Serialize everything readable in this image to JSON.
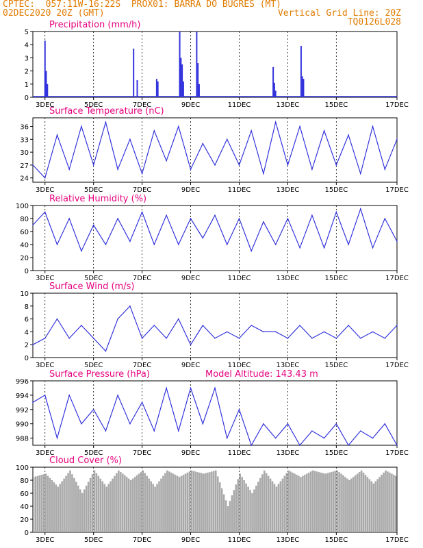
{
  "header": {
    "line1_left": "CPTEC:  057:11W-16:22S  PROX01: BARRA DO BUGRES (MT)",
    "line2_left": "02DEC2020 20Z (GMT)",
    "line2_right": "Vertical Grid Line: 20Z",
    "line3_right": "TQ0126L028"
  },
  "date_ticks": [
    "3DEC",
    "5DEC",
    "7DEC",
    "9DEC",
    "11DEC",
    "13DEC",
    "15DEC",
    "17DEC"
  ],
  "colors": {
    "series": "#3333dd",
    "title": "#e6007e",
    "header": "#e07b00",
    "cloud": "#a9a9a9",
    "grid": "#000000"
  },
  "chart_data": [
    {
      "type": "bar",
      "title": "Precipitation (mm/h)",
      "ylim": [
        0,
        5
      ],
      "yticks": [
        0,
        1,
        2,
        3,
        4,
        5
      ],
      "x_unit": "days since 2DEC 20Z",
      "points": [
        [
          0.5,
          4.3
        ],
        [
          0.55,
          2.0
        ],
        [
          0.6,
          1.0
        ],
        [
          4.15,
          3.7
        ],
        [
          4.3,
          1.3
        ],
        [
          5.1,
          1.4
        ],
        [
          5.15,
          1.2
        ],
        [
          6.05,
          5.0
        ],
        [
          6.1,
          3.0
        ],
        [
          6.15,
          2.5
        ],
        [
          6.2,
          1.2
        ],
        [
          6.75,
          5.0
        ],
        [
          6.8,
          2.6
        ],
        [
          6.85,
          1.0
        ],
        [
          9.9,
          2.3
        ],
        [
          9.95,
          1.1
        ],
        [
          10.0,
          0.5
        ],
        [
          11.05,
          3.9
        ],
        [
          11.1,
          1.6
        ],
        [
          11.15,
          1.4
        ]
      ]
    },
    {
      "type": "line",
      "title": "Surface Temperature (nC)",
      "ylim": [
        23,
        38
      ],
      "yticks": [
        24,
        27,
        30,
        33,
        36
      ],
      "x": [
        0,
        0.5,
        1,
        1.5,
        2,
        2.5,
        3,
        3.5,
        4,
        4.5,
        5,
        5.5,
        6,
        6.5,
        7,
        7.5,
        8,
        8.5,
        9,
        9.5,
        10,
        10.5,
        11,
        11.5,
        12,
        12.5,
        13,
        13.5,
        14,
        14.5,
        15
      ],
      "y": [
        27,
        24,
        34,
        26,
        36,
        27,
        37,
        26,
        33,
        25,
        35,
        28,
        36,
        26,
        32,
        27,
        33,
        27,
        35,
        25,
        37,
        27,
        36,
        26,
        35,
        27,
        34,
        25,
        36,
        26,
        33
      ]
    },
    {
      "type": "line",
      "title": "Relative Humidity (%)",
      "ylim": [
        0,
        100
      ],
      "yticks": [
        0,
        20,
        40,
        60,
        80,
        100
      ],
      "x": [
        0,
        0.5,
        1,
        1.5,
        2,
        2.5,
        3,
        3.5,
        4,
        4.5,
        5,
        5.5,
        6,
        6.5,
        7,
        7.5,
        8,
        8.5,
        9,
        9.5,
        10,
        10.5,
        11,
        11.5,
        12,
        12.5,
        13,
        13.5,
        14,
        14.5,
        15
      ],
      "y": [
        70,
        90,
        40,
        80,
        30,
        70,
        40,
        80,
        45,
        90,
        40,
        85,
        40,
        80,
        50,
        85,
        40,
        80,
        30,
        75,
        40,
        80,
        35,
        85,
        35,
        90,
        40,
        95,
        35,
        80,
        45
      ]
    },
    {
      "type": "line",
      "title": "Surface Wind (m/s)",
      "ylim": [
        0,
        10
      ],
      "yticks": [
        0,
        2,
        4,
        6,
        8,
        10
      ],
      "x": [
        0,
        0.5,
        1,
        1.5,
        2,
        2.5,
        3,
        3.5,
        4,
        4.5,
        5,
        5.5,
        6,
        6.5,
        7,
        7.5,
        8,
        8.5,
        9,
        9.5,
        10,
        10.5,
        11,
        11.5,
        12,
        12.5,
        13,
        13.5,
        14,
        14.5,
        15
      ],
      "y": [
        2,
        3,
        6,
        3,
        5,
        3,
        1,
        6,
        8,
        3,
        5,
        3,
        6,
        2,
        5,
        3,
        4,
        3,
        5,
        4,
        4,
        3,
        5,
        3,
        4,
        3,
        5,
        3,
        4,
        3,
        5
      ]
    },
    {
      "type": "line",
      "title": "Surface Pressure (hPa)",
      "annotation": "Model Altitude: 143.43 m",
      "ylim": [
        987,
        996
      ],
      "yticks": [
        988,
        990,
        992,
        994,
        996
      ],
      "x": [
        0,
        0.5,
        1,
        1.5,
        2,
        2.5,
        3,
        3.5,
        4,
        4.5,
        5,
        5.5,
        6,
        6.5,
        7,
        7.5,
        8,
        8.5,
        9,
        9.5,
        10,
        10.5,
        11,
        11.5,
        12,
        12.5,
        13,
        13.5,
        14,
        14.5,
        15
      ],
      "y": [
        993,
        994,
        988,
        994,
        990,
        992,
        989,
        994,
        990,
        993,
        989,
        995,
        989,
        995,
        990,
        995,
        988,
        992,
        987,
        990,
        988,
        990,
        987,
        989,
        988,
        990,
        987,
        989,
        988,
        990,
        987
      ]
    },
    {
      "type": "area",
      "title": "Cloud Cover (%)",
      "ylim": [
        0,
        100
      ],
      "yticks": [
        0,
        20,
        40,
        60,
        80,
        100
      ],
      "x": [
        0,
        0.5,
        1,
        1.5,
        2,
        2.5,
        3,
        3.5,
        4,
        4.5,
        5,
        5.5,
        6,
        6.5,
        7,
        7.5,
        8,
        8.5,
        9,
        9.5,
        10,
        10.5,
        11,
        11.5,
        12,
        12.5,
        13,
        13.5,
        14,
        14.5,
        15
      ],
      "y": [
        85,
        90,
        70,
        95,
        60,
        95,
        70,
        95,
        80,
        95,
        70,
        95,
        85,
        95,
        90,
        95,
        40,
        90,
        60,
        95,
        70,
        95,
        85,
        95,
        90,
        95,
        80,
        95,
        75,
        95,
        85
      ]
    }
  ]
}
